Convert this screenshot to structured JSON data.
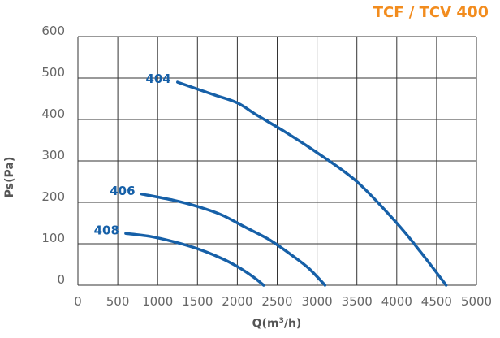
{
  "chart_data": {
    "type": "line",
    "title_prefix": "TCF / TCV ",
    "title_model": "400",
    "xlabel_main": "Q(m",
    "xlabel_sup": "3",
    "xlabel_tail": "/h)",
    "ylabel": "Ps(Pa)",
    "xlim": [
      0,
      5000
    ],
    "ylim": [
      0,
      600
    ],
    "x_ticks": [
      0,
      500,
      1000,
      1500,
      2000,
      2500,
      3000,
      3500,
      4000,
      4500,
      5000
    ],
    "y_ticks": [
      0,
      100,
      200,
      300,
      400,
      500,
      600
    ],
    "grid": true,
    "colors": {
      "curve": "#1660a8",
      "title": "#f28c1e",
      "grid": "#333333",
      "text": "#666666"
    },
    "series": [
      {
        "name": "404",
        "x": [
          1250,
          1700,
          2000,
          2250,
          2600,
          3000,
          3500,
          4000,
          4300,
          4620
        ],
        "y": [
          490,
          460,
          440,
          410,
          370,
          320,
          250,
          150,
          80,
          0
        ]
      },
      {
        "name": "406",
        "x": [
          800,
          1200,
          1500,
          1800,
          2100,
          2400,
          2700,
          2900,
          3100
        ],
        "y": [
          220,
          205,
          190,
          170,
          140,
          110,
          70,
          40,
          0
        ]
      },
      {
        "name": "408",
        "x": [
          600,
          900,
          1200,
          1500,
          1800,
          2000,
          2200,
          2330
        ],
        "y": [
          125,
          118,
          105,
          88,
          65,
          45,
          20,
          0
        ]
      }
    ]
  }
}
